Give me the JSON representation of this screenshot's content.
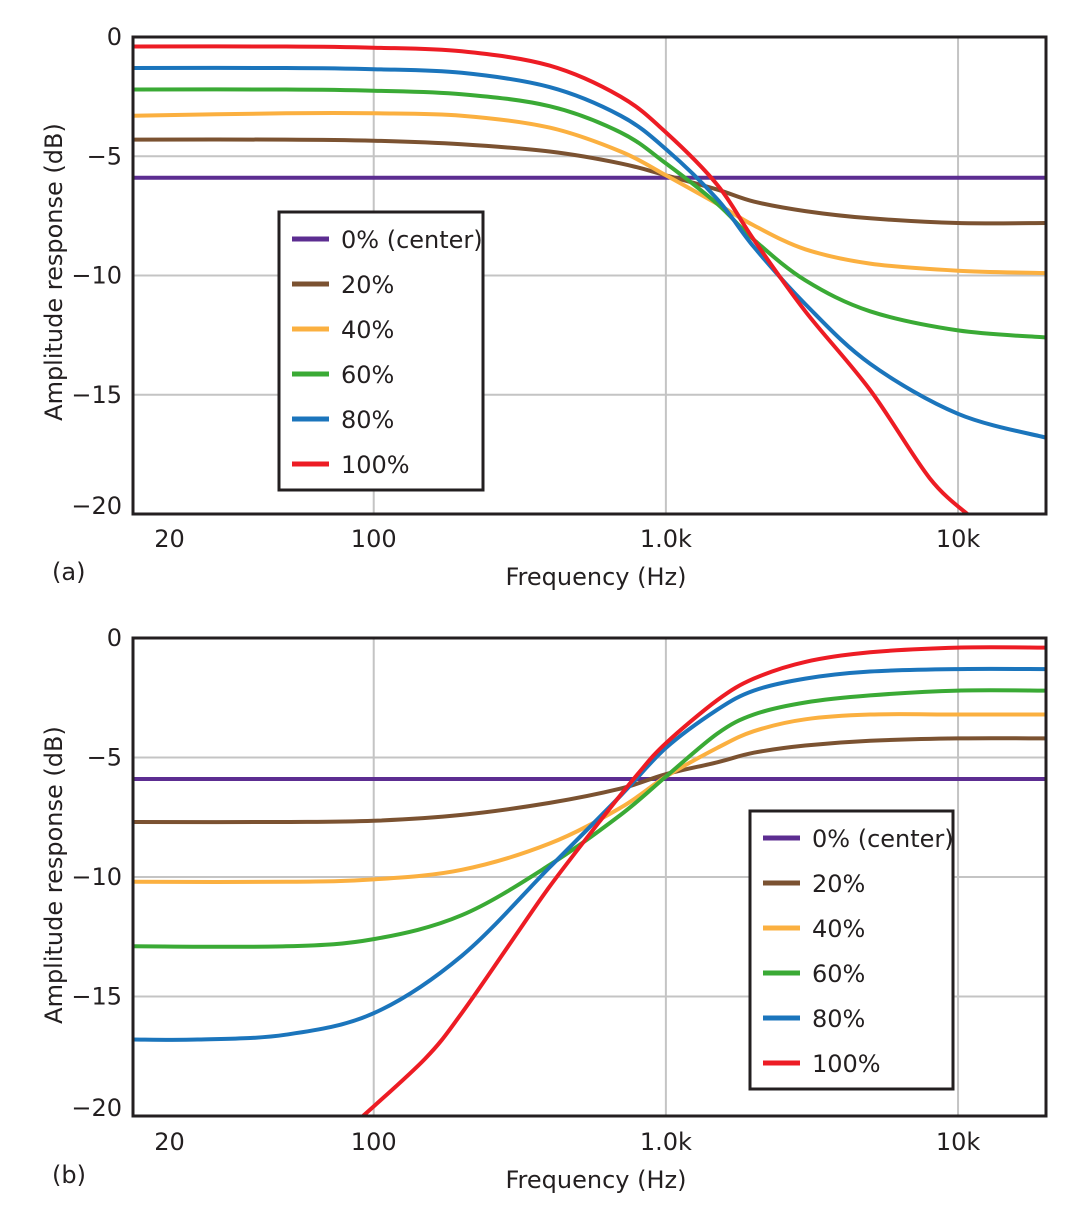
{
  "colors": {
    "s0": "#5c2d91",
    "s20": "#7b5231",
    "s40": "#fbb040",
    "s60": "#3aaa35",
    "s80": "#1b75bc",
    "s100": "#ed1c24",
    "grid": "#c4c4c4",
    "axis": "#231f20"
  },
  "chart_data": [
    {
      "type": "line",
      "panel_label": "(a)",
      "xlabel": "Frequency (Hz)",
      "ylabel": "Amplitude response (dB)",
      "x_scale": "log",
      "xlim": [
        15,
        20000
      ],
      "ylim": [
        -20,
        0
      ],
      "x_ticks": [
        20,
        100,
        1000,
        10000
      ],
      "x_tick_labels": [
        "20",
        "100",
        "1.0k",
        "10k"
      ],
      "y_ticks": [
        0,
        -5,
        -10,
        -15,
        -20
      ],
      "y_tick_labels": [
        "0",
        "−5",
        "−10",
        "−15",
        "−20"
      ],
      "grid": true,
      "legend_position": "bottom-left",
      "series": [
        {
          "name": "0% (center)",
          "color_key": "s0",
          "x": [
            15,
            20000
          ],
          "y": [
            -5.9,
            -5.9
          ]
        },
        {
          "name": "20%",
          "color_key": "s20",
          "x": [
            15,
            50,
            100,
            200,
            400,
            700,
            1000,
            1500,
            2000,
            3000,
            5000,
            10000,
            20000
          ],
          "y": [
            -4.3,
            -4.3,
            -4.35,
            -4.5,
            -4.8,
            -5.3,
            -5.8,
            -6.4,
            -6.9,
            -7.3,
            -7.6,
            -7.8,
            -7.8
          ]
        },
        {
          "name": "40%",
          "color_key": "s40",
          "x": [
            15,
            50,
            100,
            200,
            400,
            700,
            1000,
            1500,
            2000,
            3000,
            5000,
            10000,
            20000
          ],
          "y": [
            -3.3,
            -3.2,
            -3.2,
            -3.3,
            -3.8,
            -4.8,
            -5.8,
            -7.0,
            -7.9,
            -8.9,
            -9.5,
            -9.8,
            -9.9
          ]
        },
        {
          "name": "60%",
          "color_key": "s60",
          "x": [
            15,
            50,
            100,
            200,
            400,
            700,
            1000,
            1500,
            2000,
            3000,
            5000,
            10000,
            20000
          ],
          "y": [
            -2.2,
            -2.2,
            -2.25,
            -2.4,
            -2.9,
            -4.0,
            -5.3,
            -7.0,
            -8.5,
            -10.2,
            -11.5,
            -12.3,
            -12.6
          ]
        },
        {
          "name": "80%",
          "color_key": "s80",
          "x": [
            15,
            50,
            100,
            200,
            400,
            700,
            1000,
            1500,
            2000,
            3000,
            5000,
            10000,
            20000
          ],
          "y": [
            -1.3,
            -1.3,
            -1.35,
            -1.5,
            -2.1,
            -3.3,
            -4.7,
            -6.8,
            -8.8,
            -11.2,
            -13.7,
            -15.8,
            -16.8
          ]
        },
        {
          "name": "100%",
          "color_key": "s100",
          "x": [
            15,
            50,
            100,
            200,
            400,
            700,
            1000,
            1500,
            2000,
            3000,
            5000,
            8000,
            11000
          ],
          "y": [
            -0.4,
            -0.4,
            -0.45,
            -0.6,
            -1.2,
            -2.5,
            -4.0,
            -6.2,
            -8.5,
            -11.5,
            -14.8,
            -18.5,
            -20.1
          ]
        }
      ]
    },
    {
      "type": "line",
      "panel_label": "(b)",
      "xlabel": "Frequency (Hz)",
      "ylabel": "Amplitude response (dB)",
      "x_scale": "log",
      "xlim": [
        15,
        20000
      ],
      "ylim": [
        -20,
        0
      ],
      "x_ticks": [
        20,
        100,
        1000,
        10000
      ],
      "x_tick_labels": [
        "20",
        "100",
        "1.0k",
        "10k"
      ],
      "y_ticks": [
        0,
        -5,
        -10,
        -15,
        -20
      ],
      "y_tick_labels": [
        "0",
        "−5",
        "−10",
        "−15",
        "−20"
      ],
      "grid": true,
      "legend_position": "bottom-right",
      "series": [
        {
          "name": "0% (center)",
          "color_key": "s0",
          "x": [
            15,
            20000
          ],
          "y": [
            -5.9,
            -5.9
          ]
        },
        {
          "name": "20%",
          "color_key": "s20",
          "x": [
            15,
            50,
            100,
            200,
            400,
            700,
            1000,
            1500,
            2000,
            3000,
            5000,
            10000,
            20000
          ],
          "y": [
            -7.7,
            -7.7,
            -7.65,
            -7.4,
            -6.9,
            -6.3,
            -5.7,
            -5.2,
            -4.8,
            -4.5,
            -4.3,
            -4.2,
            -4.2
          ]
        },
        {
          "name": "40%",
          "color_key": "s40",
          "x": [
            15,
            50,
            100,
            200,
            400,
            700,
            1000,
            1500,
            2000,
            3000,
            5000,
            10000,
            20000
          ],
          "y": [
            -10.2,
            -10.2,
            -10.1,
            -9.7,
            -8.6,
            -7.1,
            -5.8,
            -4.6,
            -3.9,
            -3.4,
            -3.2,
            -3.2,
            -3.2
          ]
        },
        {
          "name": "60%",
          "color_key": "s60",
          "x": [
            15,
            50,
            100,
            200,
            400,
            700,
            1000,
            1500,
            2000,
            3000,
            5000,
            10000,
            20000
          ],
          "y": [
            -12.9,
            -12.9,
            -12.6,
            -11.6,
            -9.5,
            -7.4,
            -5.8,
            -4.0,
            -3.2,
            -2.7,
            -2.4,
            -2.2,
            -2.2
          ]
        },
        {
          "name": "80%",
          "color_key": "s80",
          "x": [
            15,
            25,
            50,
            100,
            200,
            400,
            700,
            1000,
            1500,
            2000,
            3000,
            5000,
            10000,
            20000
          ],
          "y": [
            -16.8,
            -16.8,
            -16.6,
            -15.7,
            -13.3,
            -9.6,
            -6.6,
            -4.6,
            -3.0,
            -2.2,
            -1.7,
            -1.4,
            -1.3,
            -1.3
          ]
        },
        {
          "name": "100%",
          "color_key": "s100",
          "x": [
            90,
            150,
            200,
            300,
            400,
            600,
            800,
            1000,
            1500,
            2000,
            3000,
            5000,
            10000,
            20000
          ],
          "y": [
            -20.1,
            -17.6,
            -15.7,
            -12.6,
            -10.4,
            -7.6,
            -5.7,
            -4.4,
            -2.6,
            -1.7,
            -1.0,
            -0.6,
            -0.4,
            -0.4
          ]
        }
      ]
    }
  ]
}
